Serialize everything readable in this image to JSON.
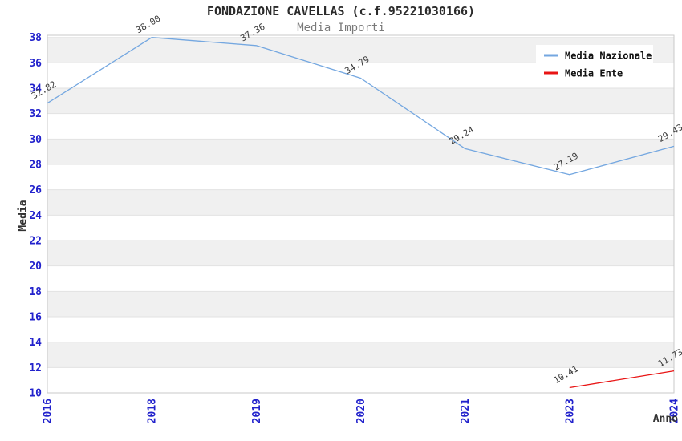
{
  "title": "FONDAZIONE CAVELLAS (c.f.95221030166)",
  "subtitle": "Media Importi",
  "chart_data": {
    "type": "line",
    "categories": [
      "2016",
      "2018",
      "2019",
      "2020",
      "2021",
      "2023",
      "2024"
    ],
    "series": [
      {
        "name": "Media Nazionale",
        "color": "#74a7e0",
        "values": [
          32.82,
          38.0,
          37.36,
          34.79,
          29.24,
          27.19,
          29.43
        ]
      },
      {
        "name": "Media Ente",
        "color": "#e81414",
        "values": [
          null,
          null,
          null,
          null,
          null,
          10.41,
          11.73
        ]
      }
    ],
    "xlabel": "Anno",
    "ylabel": "Media",
    "ylim": [
      10,
      38.17
    ],
    "yticks": [
      10,
      12,
      14,
      16,
      18,
      20,
      22,
      24,
      26,
      28,
      30,
      32,
      34,
      36,
      38
    ],
    "grid": "horizontal-bands",
    "legend_position": "top-right",
    "data_labels": true
  },
  "colors": {
    "tick_label": "#2222cc",
    "band": "#f0f0f0",
    "grid_line": "#e2e2e2",
    "plot_border": "#c9c9c9",
    "data_label": "#3a3a3a",
    "axis_title": "#333333",
    "legend_text": "#111111",
    "legend_bg": "#ffffff"
  }
}
